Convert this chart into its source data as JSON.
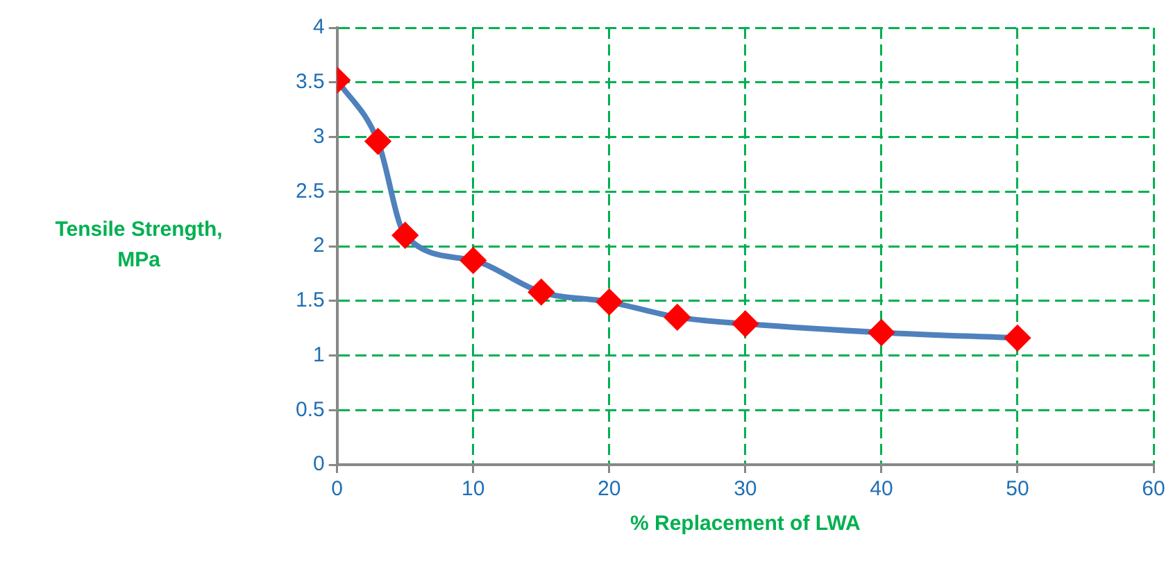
{
  "chart_data": {
    "type": "line",
    "xlabel": "% Replacement of LWA",
    "ylabel": "Tensile Strength, MPa",
    "x": [
      0,
      3,
      5,
      10,
      15,
      20,
      25,
      30,
      40,
      50
    ],
    "series": [
      {
        "color": "#4f81bd",
        "values": [
          3.52,
          2.96,
          2.1,
          1.87,
          1.58,
          1.49,
          1.35,
          1.29,
          1.21,
          1.16
        ]
      }
    ],
    "xlim": [
      0,
      60
    ],
    "xticks": [
      0,
      10,
      20,
      30,
      40,
      50,
      60
    ],
    "ylim": [
      0,
      4
    ],
    "yticks": [
      0,
      0.5,
      1,
      1.5,
      2,
      2.5,
      3,
      3.5,
      4
    ],
    "grid": true,
    "marker": "diamond",
    "line_style": "solid",
    "legend": false
  }
}
